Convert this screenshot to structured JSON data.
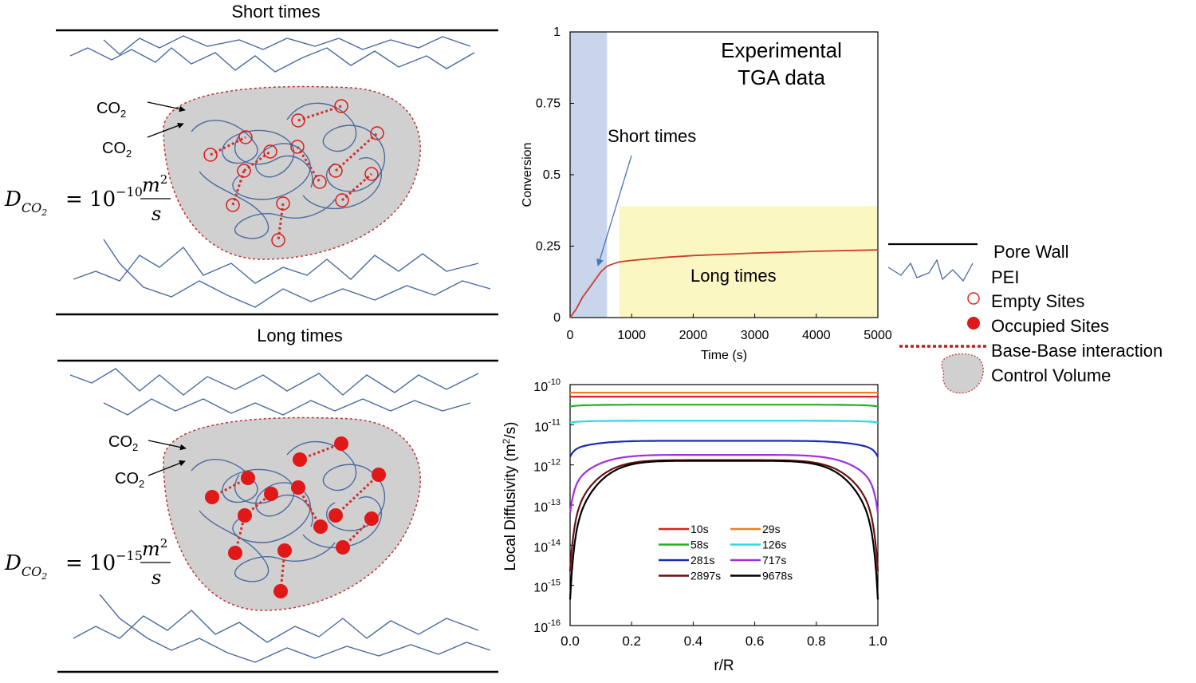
{
  "schematic": {
    "top_title": "Short times",
    "bottom_title": "Long times",
    "co2_labels": [
      "CO",
      "2",
      "CO",
      "2"
    ],
    "eq_short": {
      "D": "D",
      "sub": "CO",
      "sub2": "2",
      "eq": "= 10",
      "exp": "−10",
      "num": "m",
      "num_exp": "2",
      "den": "s"
    },
    "eq_long": {
      "D": "D",
      "sub": "CO",
      "sub2": "2",
      "eq": "= 10",
      "exp": "−15",
      "num": "m",
      "num_exp": "2",
      "den": "s"
    }
  },
  "colors": {
    "pei": "#4a6aa0",
    "site": "#e01818",
    "cv_fill": "#d0d0d0",
    "cv_edge": "#c03030",
    "short_band": "#c9d5ea",
    "long_band": "#fbf7c2"
  },
  "legend": {
    "items": [
      {
        "label": "Pore Wall",
        "icon": "line-icon"
      },
      {
        "label": "PEI",
        "icon": "pei-chain-icon"
      },
      {
        "label": "Empty Sites",
        "icon": "open-circle-icon"
      },
      {
        "label": "Occupied Sites",
        "icon": "filled-circle-icon"
      },
      {
        "label": "Base-Base interaction",
        "icon": "dotted-line-icon"
      },
      {
        "label": "Control Volume",
        "icon": "blob-icon"
      }
    ]
  },
  "chart_data": [
    {
      "type": "line",
      "title": "Experimental TGA data",
      "xlabel": "Time (s)",
      "ylabel": "Conversion",
      "xlim": [
        0,
        5000
      ],
      "ylim": [
        0,
        1
      ],
      "xticks": [
        "0",
        "1000",
        "2000",
        "3000",
        "4000",
        "5000"
      ],
      "yticks": [
        "0",
        "0.25",
        "0.5",
        "0.75",
        "1"
      ],
      "annotations": [
        "Short times",
        "Long times"
      ],
      "regions": [
        {
          "label": "Short times",
          "x": [
            0,
            600
          ]
        },
        {
          "label": "Long times",
          "x": [
            800,
            5000
          ],
          "y": [
            0,
            0.39
          ]
        }
      ],
      "series": [
        {
          "color": "#d03a2a",
          "x": [
            0,
            100,
            200,
            300,
            400,
            500,
            600,
            700,
            800,
            1000,
            1500,
            2000,
            3000,
            4000,
            5000
          ],
          "y": [
            0,
            0.03,
            0.07,
            0.1,
            0.13,
            0.16,
            0.18,
            0.188,
            0.195,
            0.2,
            0.21,
            0.217,
            0.226,
            0.232,
            0.237
          ]
        }
      ]
    },
    {
      "type": "line",
      "xlabel": "r/R",
      "ylabel": "Local Diffusivity (m²/s)",
      "xlim": [
        0,
        1
      ],
      "ylim_log10": [
        -16,
        -10
      ],
      "xticks": [
        "0.0",
        "0.2",
        "0.4",
        "0.6",
        "0.8",
        "1.0"
      ],
      "yticks": [
        {
          "base": "10",
          "exp": "-10",
          "v": -10
        },
        {
          "base": "10",
          "exp": "-11",
          "v": -11
        },
        {
          "base": "10",
          "exp": "-12",
          "v": -12
        },
        {
          "base": "10",
          "exp": "-13",
          "v": -13
        },
        {
          "base": "10",
          "exp": "-14",
          "v": -14
        },
        {
          "base": "10",
          "exp": "-15",
          "v": -15
        },
        {
          "base": "10",
          "exp": "-16",
          "v": -16
        }
      ],
      "scale": "log",
      "series": [
        {
          "name": "10s",
          "color": "#e02020",
          "center_log10": -10.3,
          "edge_log10": -10.3
        },
        {
          "name": "29s",
          "color": "#f08020",
          "center_log10": -10.2,
          "edge_log10": -10.2
        },
        {
          "name": "58s",
          "color": "#22b022",
          "center_log10": -10.5,
          "edge_log10": -10.55
        },
        {
          "name": "126s",
          "color": "#30d8e0",
          "center_log10": -10.9,
          "edge_log10": -10.95
        },
        {
          "name": "281s",
          "color": "#1a2ab8",
          "center_log10": -11.4,
          "edge_log10": -11.8
        },
        {
          "name": "717s",
          "color": "#9b30e0",
          "center_log10": -11.75,
          "edge_log10": -13.2
        },
        {
          "name": "2897s",
          "color": "#6a1010",
          "center_log10": -11.88,
          "edge_log10": -14.65
        },
        {
          "name": "9678s",
          "color": "#000000",
          "center_log10": -11.9,
          "edge_log10": -15.35
        }
      ]
    }
  ]
}
